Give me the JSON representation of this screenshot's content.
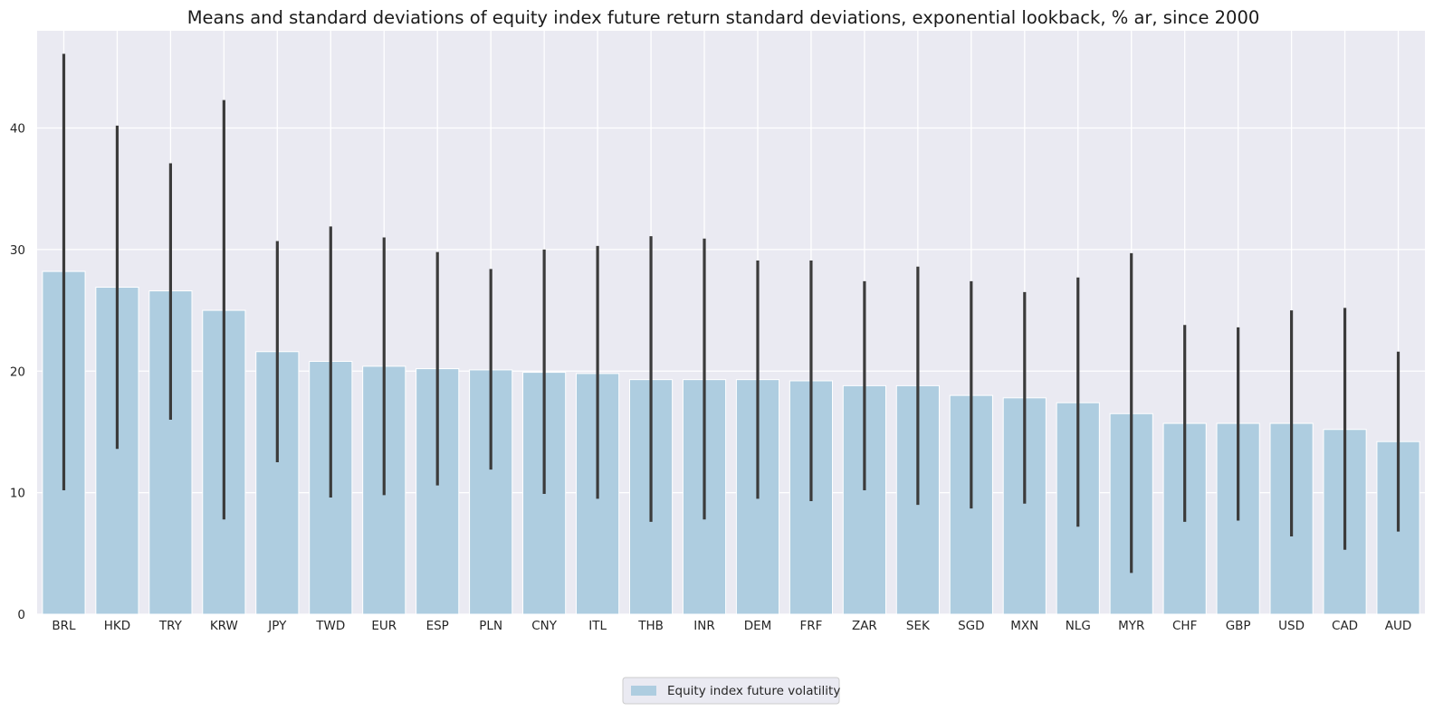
{
  "chart_data": {
    "type": "bar",
    "title": "Means and standard deviations of equity index future return standard deviations, exponential lookback, % ar, since 2000",
    "xlabel": "",
    "ylabel": "",
    "ylim": [
      0,
      48
    ],
    "yticks": [
      0,
      10,
      20,
      30,
      40
    ],
    "grid": true,
    "legend_position": "bottom-center",
    "categories": [
      "BRL",
      "HKD",
      "TRY",
      "KRW",
      "JPY",
      "TWD",
      "EUR",
      "ESP",
      "PLN",
      "CNY",
      "ITL",
      "THB",
      "INR",
      "DEM",
      "FRF",
      "ZAR",
      "SEK",
      "SGD",
      "MXN",
      "NLG",
      "MYR",
      "CHF",
      "GBP",
      "USD",
      "CAD",
      "AUD"
    ],
    "series": [
      {
        "name": "Equity index future volatility",
        "color": "#aecde0",
        "values": [
          28.2,
          26.9,
          26.6,
          25.0,
          21.6,
          20.8,
          20.4,
          20.2,
          20.1,
          19.9,
          19.8,
          19.3,
          19.3,
          19.3,
          19.2,
          18.8,
          18.8,
          18.0,
          17.8,
          17.4,
          16.5,
          15.7,
          15.7,
          15.7,
          15.2,
          14.2
        ],
        "error_low": [
          10.2,
          13.6,
          16.0,
          7.8,
          12.5,
          9.6,
          9.8,
          10.6,
          11.9,
          9.9,
          9.5,
          7.6,
          7.8,
          9.5,
          9.3,
          10.2,
          9.0,
          8.7,
          9.1,
          7.2,
          3.4,
          7.6,
          7.7,
          6.4,
          5.3,
          6.8
        ],
        "error_high": [
          46.1,
          40.2,
          37.1,
          42.3,
          30.7,
          31.9,
          31.0,
          29.8,
          28.4,
          30.0,
          30.3,
          31.1,
          30.9,
          29.1,
          29.1,
          27.4,
          28.6,
          27.4,
          26.5,
          27.7,
          29.7,
          23.8,
          23.6,
          25.0,
          25.2,
          21.6
        ]
      }
    ]
  },
  "colors": {
    "plot_background": "#eaeaf2",
    "grid": "#ffffff",
    "error_bar": "#3b3b3b"
  }
}
